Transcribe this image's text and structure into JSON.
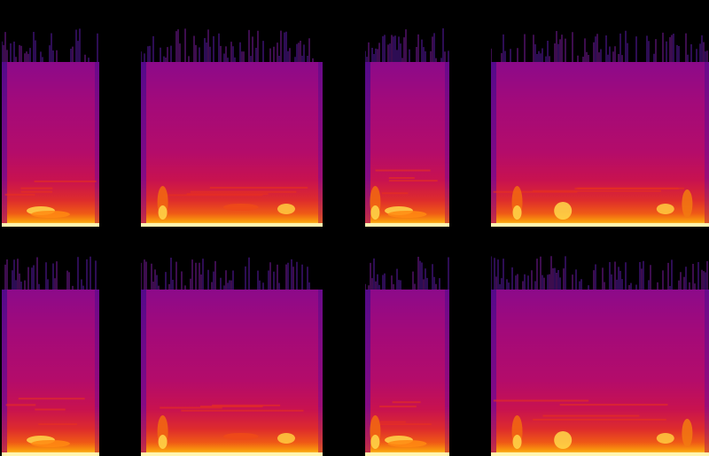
{
  "image": {
    "description_free": true,
    "layout": "grid",
    "rows": 2,
    "columns": 4,
    "colormap": [
      "#000000",
      "#3a0a8c",
      "#8c0a8a",
      "#b40c6a",
      "#de2c2c",
      "#fa9f0c",
      "#fff3a0"
    ]
  },
  "panels": [
    {
      "id": "r1c1",
      "features": [
        "bottom-burst-left"
      ]
    },
    {
      "id": "r1c2",
      "features": [
        "left-burst",
        "mid-burst",
        "right-burst"
      ]
    },
    {
      "id": "r1c3",
      "features": [
        "left-burst",
        "bottom-burst-left"
      ]
    },
    {
      "id": "r1c4",
      "features": [
        "left-burst",
        "sweep",
        "right-burst"
      ]
    },
    {
      "id": "r2c1",
      "features": [
        "bottom-burst-left"
      ]
    },
    {
      "id": "r2c2",
      "features": [
        "left-burst",
        "mid-burst",
        "right-burst"
      ]
    },
    {
      "id": "r2c3",
      "features": [
        "left-burst",
        "bottom-burst-left"
      ]
    },
    {
      "id": "r2c4",
      "features": [
        "left-burst",
        "sweep",
        "right-burst"
      ]
    }
  ]
}
